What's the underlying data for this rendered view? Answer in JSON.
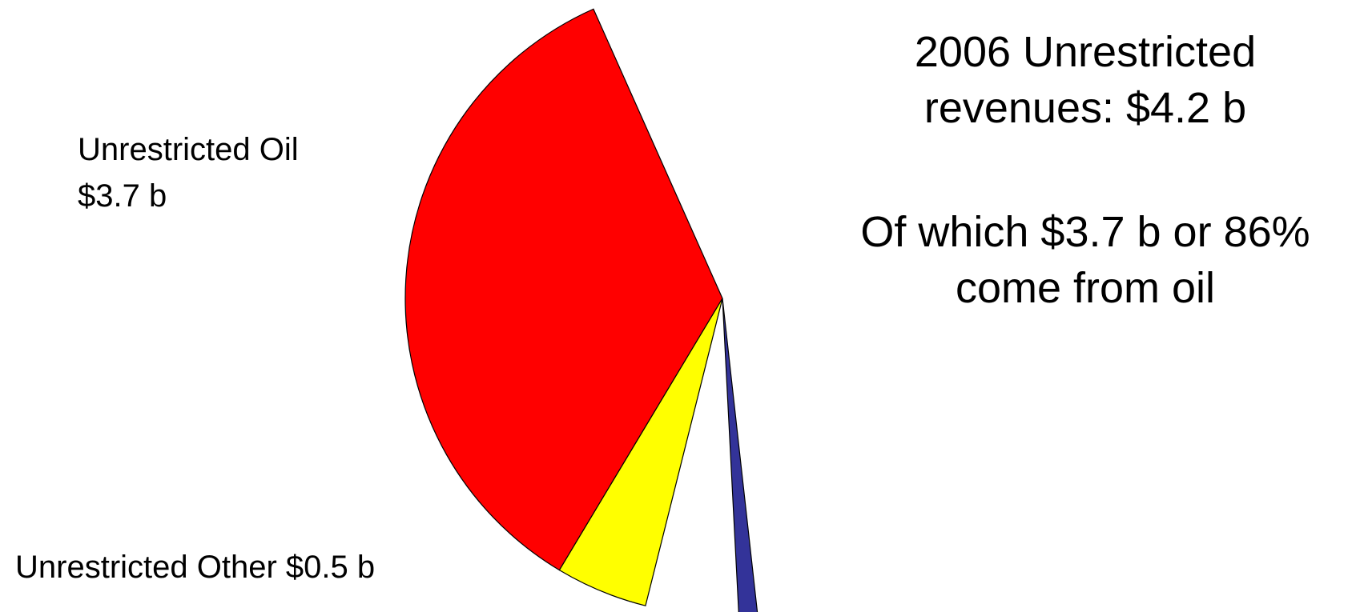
{
  "chart_data": {
    "type": "pie",
    "title": [
      "2006 Unrestricted",
      "revenues: $4.2 b"
    ],
    "subtitle": [
      "Of which $3.7 b or 86%",
      "come from oil"
    ],
    "categories": [
      "Unrestricted Oil  $3.7 b",
      "Unrestricted Other $0.5 b",
      null
    ],
    "values": [
      3.7,
      0.5,
      0.1
    ],
    "colors": [
      "#ff0000",
      "#ffff00",
      "#333399"
    ]
  }
}
